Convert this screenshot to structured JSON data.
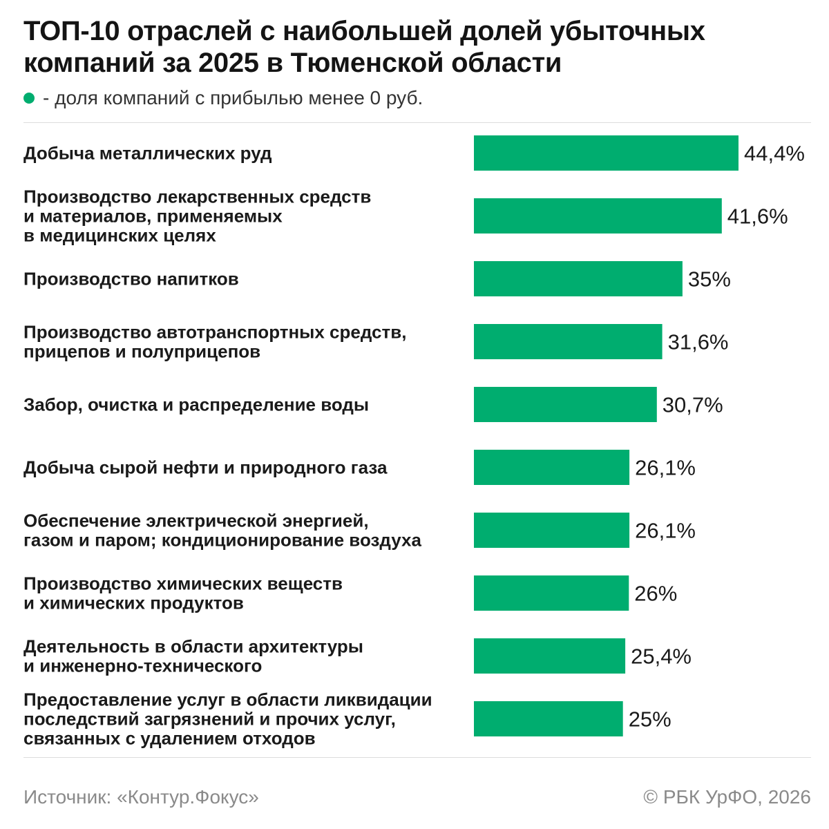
{
  "header": {
    "title": "ТОП-10 отраслей с наибольшей долей убыточных компаний за 2025 в Тюменской области",
    "legend_text": "- доля компаний с прибылью менее 0 руб."
  },
  "colors": {
    "bar": "#00ad6f",
    "label_text": "#1a1a1a",
    "value_text": "#1a1a1a",
    "footer_text": "#8a8a8a"
  },
  "chart_data": {
    "type": "bar",
    "orientation": "horizontal",
    "categories": [
      [
        "Добыча металлических руд"
      ],
      [
        "Производство лекарственных средств",
        "и материалов, применяемых",
        "в медицинских целях"
      ],
      [
        "Производство напитков"
      ],
      [
        "Производство автотранспортных средств,",
        "прицепов и полуприцепов"
      ],
      [
        "Забор, очистка и распределение воды"
      ],
      [
        "Добыча сырой нефти и природного газа"
      ],
      [
        "Обеспечение электрической энергией,",
        "газом и паром; кондиционирование воздуха"
      ],
      [
        "Производство химических веществ",
        "и химических продуктов"
      ],
      [
        "Деятельность в области архитектуры",
        "и инженерно-технического"
      ],
      [
        "Предоставление услуг в области ликвидации",
        "последствий загрязнений и прочих услуг,",
        "связанных с удалением отходов"
      ]
    ],
    "values": [
      44.4,
      41.6,
      35,
      31.6,
      30.7,
      26.1,
      26.1,
      26,
      25.4,
      25
    ],
    "value_labels": [
      "44,4%",
      "41,6%",
      "35%",
      "31,6%",
      "30,7%",
      "26,1%",
      "26,1%",
      "26%",
      "25,4%",
      "25%"
    ],
    "series": [
      {
        "values": [
          44.4,
          41.6,
          35,
          31.6,
          30.7,
          26.1,
          26.1,
          26,
          25.4,
          25
        ]
      }
    ],
    "unit": "%",
    "xlim": [
      0,
      100
    ],
    "grid": false,
    "legend_position": "top-left"
  },
  "footer": {
    "source": "Источник: «Контур.Фокус»",
    "copyright": "© РБК УрФО, 2026"
  }
}
